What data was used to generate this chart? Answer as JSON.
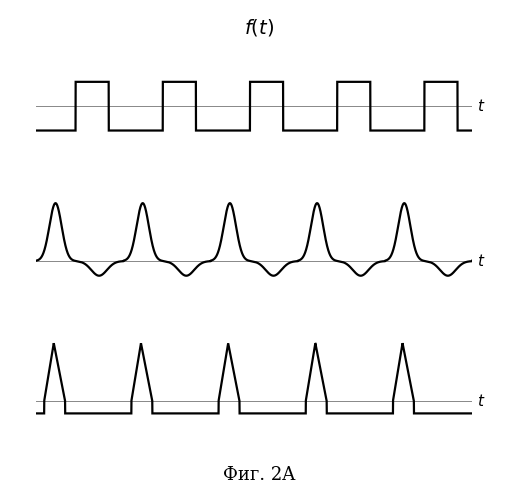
{
  "title": "$f(t)$",
  "fig_label": "Фиг. 2A",
  "background_color": "#ffffff",
  "line_color": "#000000",
  "axis_color": "#888888",
  "figsize": [
    5.19,
    5.0
  ],
  "dpi": 100,
  "lw": 1.6
}
